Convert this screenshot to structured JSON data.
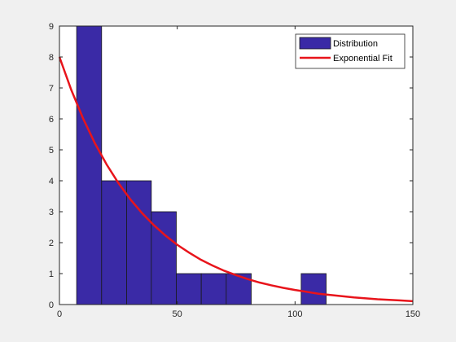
{
  "chart_data": {
    "type": "bar",
    "title": "",
    "xlabel": "",
    "ylabel": "",
    "xlim": [
      0,
      150
    ],
    "ylim": [
      0,
      9
    ],
    "xticks": [
      0,
      50,
      100,
      150
    ],
    "yticks": [
      0,
      1,
      2,
      3,
      4,
      5,
      6,
      7,
      8,
      9
    ],
    "grid": false,
    "legend_location": "top-right",
    "series": [
      {
        "name": "Distribution",
        "kind": "histogram",
        "color": "#3a2aa6",
        "edge_color": "#1a1a1a",
        "bins": [
          {
            "x0": 7.3,
            "x1": 17.9,
            "count": 9
          },
          {
            "x0": 17.9,
            "x1": 28.5,
            "count": 4
          },
          {
            "x0": 28.5,
            "x1": 39.0,
            "count": 4
          },
          {
            "x0": 39.0,
            "x1": 49.6,
            "count": 3
          },
          {
            "x0": 49.6,
            "x1": 60.2,
            "count": 1
          },
          {
            "x0": 60.2,
            "x1": 70.8,
            "count": 1
          },
          {
            "x0": 70.8,
            "x1": 81.4,
            "count": 1
          },
          {
            "x0": 81.4,
            "x1": 92.0,
            "count": 0
          },
          {
            "x0": 92.0,
            "x1": 102.6,
            "count": 0
          },
          {
            "x0": 102.6,
            "x1": 113.2,
            "count": 1
          }
        ]
      },
      {
        "name": "Exponential Fit",
        "kind": "line",
        "color": "#e8141b",
        "x": [
          0,
          5,
          10,
          15,
          20,
          25,
          30,
          35,
          40,
          45,
          50,
          55,
          60,
          65,
          70,
          75,
          80,
          85,
          90,
          95,
          100,
          105,
          110,
          115,
          120,
          125,
          130,
          135,
          140,
          145,
          150
        ],
        "y": [
          8.0,
          6.94,
          6.02,
          5.22,
          4.53,
          3.93,
          3.41,
          2.96,
          2.57,
          2.23,
          1.93,
          1.68,
          1.45,
          1.26,
          1.09,
          0.95,
          0.82,
          0.71,
          0.62,
          0.54,
          0.47,
          0.41,
          0.35,
          0.31,
          0.27,
          0.23,
          0.2,
          0.17,
          0.15,
          0.13,
          0.11
        ]
      }
    ]
  }
}
